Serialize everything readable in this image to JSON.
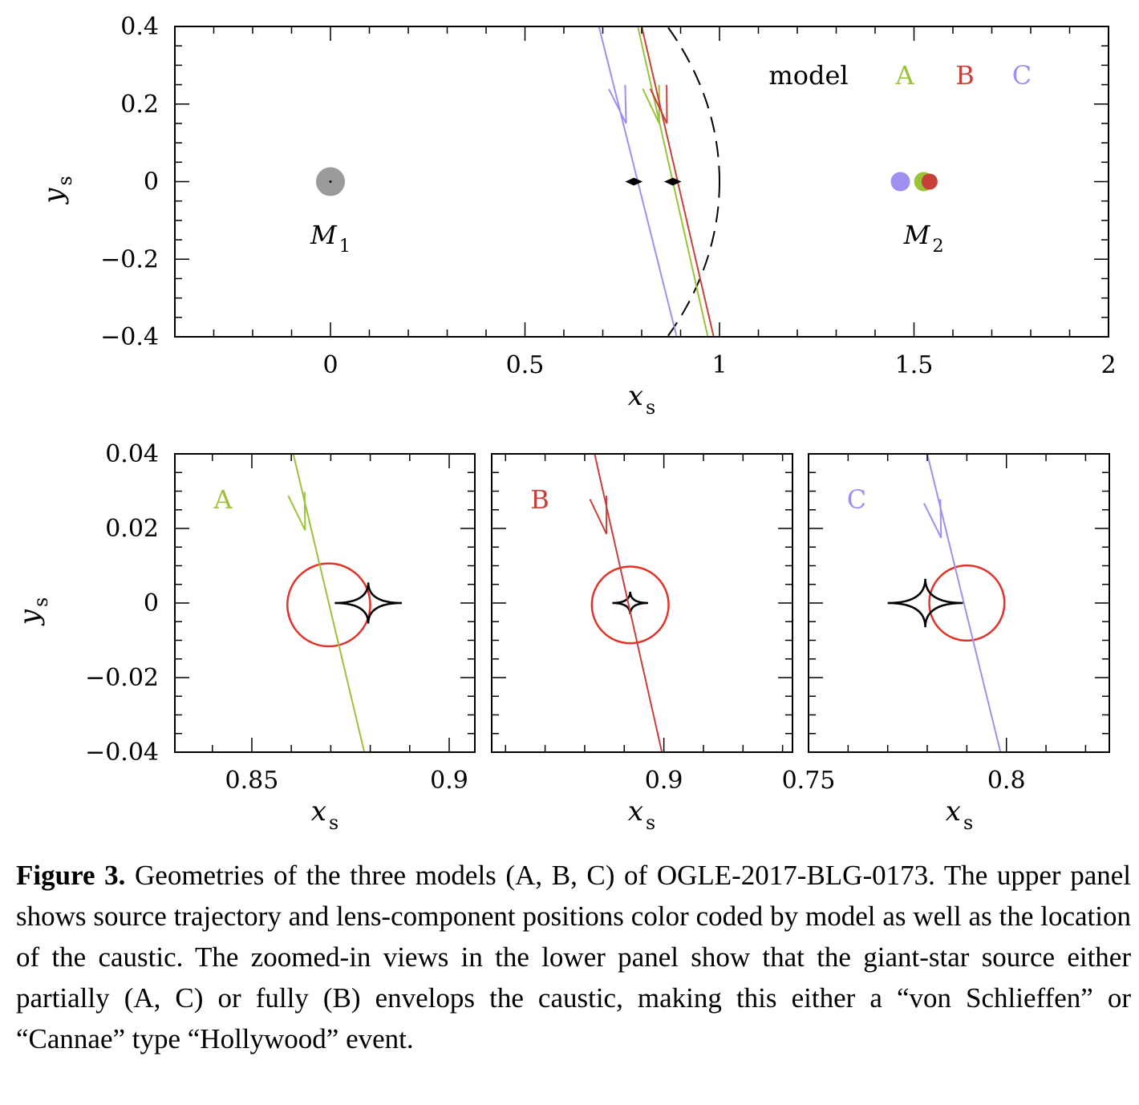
{
  "chart_data": [
    {
      "type": "scatter",
      "panel": "upper",
      "xlabel": "x",
      "xlabel_sub": "s",
      "ylabel": "y",
      "ylabel_sub": "s",
      "xlim": [
        -0.4,
        2.0
      ],
      "ylim": [
        -0.4,
        0.4
      ],
      "xticks": [
        0,
        0.5,
        1,
        1.5,
        2
      ],
      "xtick_labels": [
        "0",
        "0.5",
        "1",
        "1.5",
        "2"
      ],
      "yticks": [
        0.4,
        0.2,
        0,
        -0.2,
        -0.4
      ],
      "ytick_labels": [
        "0.4",
        "0.2",
        "0",
        "−0.2",
        "−0.4"
      ],
      "legend": {
        "title": "model",
        "entries": [
          "A",
          "B",
          "C"
        ],
        "placement": "top-right"
      },
      "colors": {
        "A": "#9bc23b",
        "B": "#c8403a",
        "C": "#a08ef0",
        "M1": "#9a9a9a"
      },
      "series": [
        {
          "name": "A",
          "trajectory": [
            [
              0.79,
              0.4
            ],
            [
              0.97,
              -0.4
            ]
          ],
          "arrow_at": [
            0.845,
            0.15
          ]
        },
        {
          "name": "B",
          "trajectory": [
            [
              0.8,
              0.4
            ],
            [
              0.985,
              -0.4
            ]
          ],
          "arrow_at": [
            0.865,
            0.15
          ]
        },
        {
          "name": "C",
          "trajectory": [
            [
              0.69,
              0.4
            ],
            [
              0.89,
              -0.4
            ]
          ],
          "arrow_at": [
            0.76,
            0.15
          ]
        }
      ],
      "lens_positions": [
        {
          "model": "M1",
          "x": 0.0,
          "y": 0.0
        },
        {
          "model": "C",
          "x": 1.465,
          "y": 0.0
        },
        {
          "model": "A",
          "x": 1.525,
          "y": 0.0
        },
        {
          "model": "B",
          "x": 1.54,
          "y": 0.0
        }
      ],
      "lens_labels": [
        {
          "text": "M",
          "sub": "1",
          "x": 0.0,
          "y": -0.135
        },
        {
          "text": "M",
          "sub": "2",
          "x": 1.525,
          "y": -0.135
        }
      ],
      "caustic_points": [
        [
          0.78,
          0.0
        ],
        [
          0.88,
          0.0
        ]
      ],
      "critical_curve": {
        "style": "dashed",
        "center_x": 0.0,
        "radius_x": 1.0,
        "radius_y": 0.8
      }
    },
    {
      "type": "scatter",
      "panel": "A",
      "label": "A",
      "xlabel": "x",
      "xlabel_sub": "s",
      "ylabel": "y",
      "ylabel_sub": "s",
      "xlim": [
        0.8305,
        0.9065
      ],
      "ylim": [
        -0.04,
        0.04
      ],
      "xticks": [
        0.85,
        0.9
      ],
      "xtick_labels": [
        "0.85",
        "0.9"
      ],
      "yticks": [
        0.04,
        0.02,
        0,
        -0.02,
        -0.04
      ],
      "ytick_labels": [
        "0.04",
        "0.02",
        "0",
        "−0.02",
        "−0.04"
      ],
      "trajectory": [
        [
          0.8605,
          0.04
        ],
        [
          0.8785,
          -0.04
        ]
      ],
      "arrow_at": [
        0.8635,
        0.0195
      ],
      "source": {
        "x": 0.8695,
        "y": -0.0005,
        "r": 0.0105
      },
      "caustic": {
        "x": 0.8795,
        "y": 0.0,
        "half_width": 0.0085,
        "half_height": 0.0055
      }
    },
    {
      "type": "scatter",
      "panel": "B",
      "label": "B",
      "xlabel": "x",
      "xlabel_sub": "s",
      "xlim": [
        0.8565,
        0.9325
      ],
      "ylim": [
        -0.04,
        0.04
      ],
      "xticks": [
        0.9
      ],
      "xtick_labels": [
        "0.9"
      ],
      "trajectory": [
        [
          0.8825,
          0.04
        ],
        [
          0.8995,
          -0.04
        ]
      ],
      "arrow_at": [
        0.8855,
        0.0185
      ],
      "source": {
        "x": 0.8915,
        "y": -0.0005,
        "r": 0.0097
      },
      "caustic": {
        "x": 0.8915,
        "y": 0.0,
        "half_width": 0.0045,
        "half_height": 0.003
      }
    },
    {
      "type": "scatter",
      "panel": "C",
      "label": "C",
      "xlabel": "x",
      "xlabel_sub": "s",
      "xlim": [
        0.75,
        0.826
      ],
      "ylim": [
        -0.04,
        0.04
      ],
      "xticks": [
        0.75,
        0.8
      ],
      "xtick_labels": [
        "0.75",
        "0.8"
      ],
      "trajectory": [
        [
          0.78,
          0.04
        ],
        [
          0.7985,
          -0.04
        ]
      ],
      "arrow_at": [
        0.7835,
        0.0175
      ],
      "source": {
        "x": 0.79,
        "y": 0.0,
        "r": 0.0095
      },
      "caustic": {
        "x": 0.7795,
        "y": 0.0,
        "half_width": 0.0095,
        "half_height": 0.0065
      }
    }
  ],
  "caption": {
    "label": "Figure 3.",
    "text": "Geometries of the three models (A, B, C) of OGLE-2017-BLG-0173. The upper panel shows source trajectory and lens-component positions color coded by model as well as the location of the caustic. The zoomed-in views in the lower panel show that the giant-star source either partially (A, C) or fully (B) envelops the caustic, making this either a “von Schlieffen” or “Cannae” type “Hollywood” event."
  }
}
